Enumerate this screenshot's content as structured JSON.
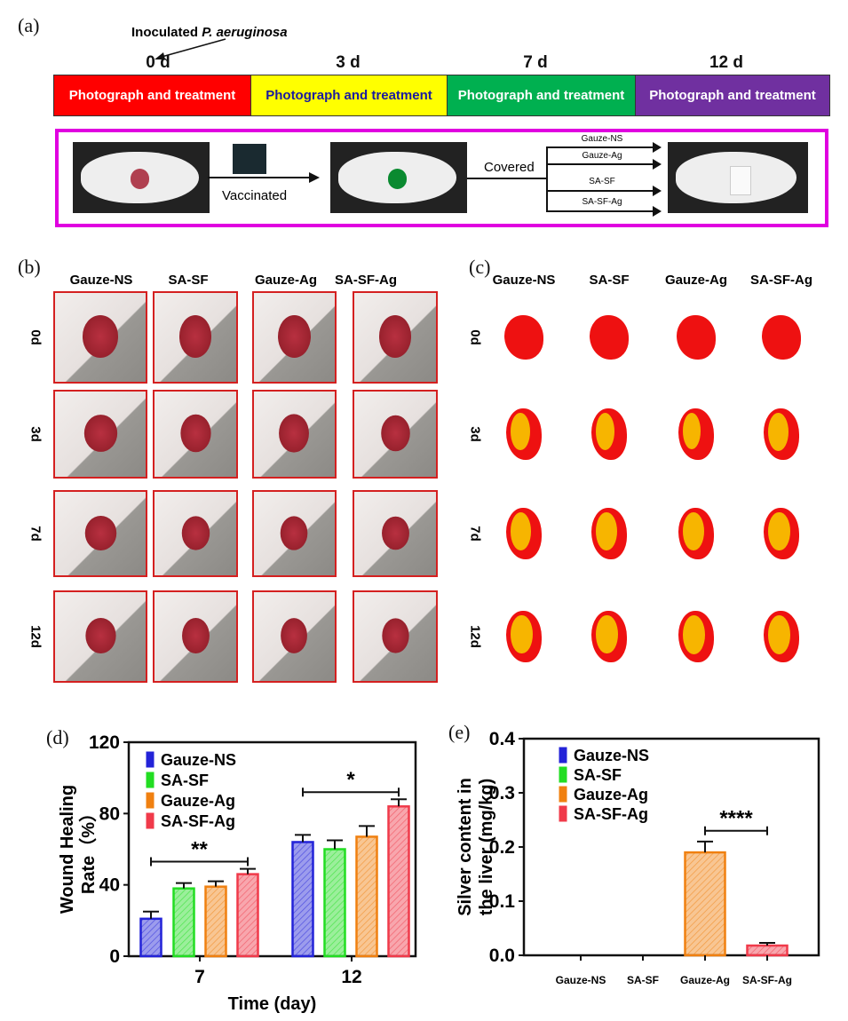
{
  "panel_a": {
    "label": "(a)",
    "inoculated_prefix": "Inoculated ",
    "inoculated_species": "P. aeruginosa",
    "days": [
      "0 d",
      "3 d",
      "7 d",
      "12 d"
    ],
    "stages": [
      {
        "text": "Photograph  and treatment",
        "bg": "#ff0000",
        "fg": "#ffffff"
      },
      {
        "text": "Photograph  and treatment",
        "bg": "#ffff00",
        "fg": "#1a1aa0"
      },
      {
        "text": "Photograph  and treatment",
        "bg": "#00b050",
        "fg": "#ffffff"
      },
      {
        "text": "Photograph  and treatment",
        "bg": "#7030a0",
        "fg": "#ffffff"
      }
    ],
    "vaccinated": "Vaccinated",
    "covered": "Covered",
    "treatments": [
      "Gauze-NS",
      "Gauze-Ag",
      "SA-SF",
      "SA-SF-Ag"
    ],
    "box_color": "#e000e0"
  },
  "panel_b": {
    "label": "(b)",
    "columns": [
      "Gauze-NS",
      "SA-SF",
      "Gauze-Ag",
      "SA-SF-Ag"
    ],
    "rows": [
      "0d",
      "3d",
      "7d",
      "12d"
    ]
  },
  "panel_c": {
    "label": "(c)",
    "columns": [
      "Gauze-NS",
      "SA-SF",
      "Gauze-Ag",
      "SA-SF-Ag"
    ],
    "rows": [
      "0d",
      "3d",
      "7d",
      "12d"
    ],
    "wound_color": "#ee1111",
    "healed_color": "#f7b500"
  },
  "chart_data": [
    {
      "panel_label": "(d)",
      "type": "bar",
      "xlabel": "Time (day)",
      "ylabel_line1": "Wound Healing",
      "ylabel_line2": "Rate（%）",
      "categories": [
        "7",
        "12"
      ],
      "ylim": [
        0,
        120
      ],
      "yticks": [
        "0",
        "40",
        "80",
        "120"
      ],
      "series": [
        {
          "name": "Gauze-NS",
          "color": "#2323d8",
          "values": [
            21,
            64
          ],
          "errors": [
            4,
            4
          ]
        },
        {
          "name": "SA-SF",
          "color": "#22dd22",
          "values": [
            38,
            60
          ],
          "errors": [
            3,
            5
          ]
        },
        {
          "name": "Gauze-Ag",
          "color": "#f08010",
          "values": [
            39,
            67
          ],
          "errors": [
            3,
            6
          ]
        },
        {
          "name": "SA-SF-Ag",
          "color": "#f03a4a",
          "values": [
            46,
            84
          ],
          "errors": [
            3,
            4
          ]
        }
      ],
      "annotations": [
        {
          "text": "**",
          "category": "7",
          "from": 0,
          "to": 3,
          "y": 53
        },
        {
          "text": "*",
          "category": "12",
          "from": 0,
          "to": 3,
          "y": 92
        }
      ],
      "legend": "top-left"
    },
    {
      "panel_label": "(e)",
      "type": "bar",
      "xlabel": "",
      "ylabel_line1": "Silver content in",
      "ylabel_line2": "the liver (mg/kg)",
      "categories": [
        "Gauze-NS",
        "SA-SF",
        "Gauze-Ag",
        "SA-SF-Ag"
      ],
      "ylim": [
        0,
        0.4
      ],
      "yticks": [
        "0.0",
        "0.1",
        "0.2",
        "0.3",
        "0.4"
      ],
      "series": [
        {
          "name": "Gauze-NS",
          "color": "#2323d8",
          "values": [
            0,
            null,
            null,
            null
          ],
          "errors": [
            0,
            null,
            null,
            null
          ]
        },
        {
          "name": "SA-SF",
          "color": "#22dd22",
          "values": [
            null,
            0,
            null,
            null
          ],
          "errors": [
            null,
            0,
            null,
            null
          ]
        },
        {
          "name": "Gauze-Ag",
          "color": "#f08010",
          "values": [
            null,
            null,
            0.19,
            null
          ],
          "errors": [
            null,
            null,
            0.02,
            null
          ]
        },
        {
          "name": "SA-SF-Ag",
          "color": "#f03a4a",
          "values": [
            null,
            null,
            null,
            0.018
          ],
          "errors": [
            null,
            null,
            null,
            0.005
          ]
        }
      ],
      "annotations": [
        {
          "text": "****",
          "from": 2,
          "to": 3,
          "y": 0.23
        }
      ],
      "legend": "top-left"
    }
  ]
}
